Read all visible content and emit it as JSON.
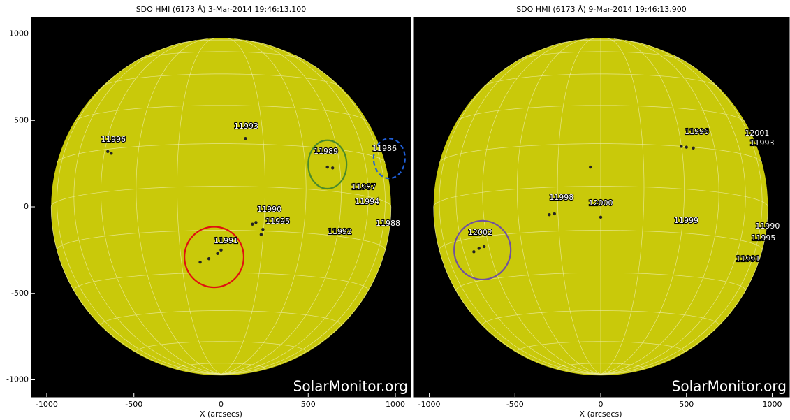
{
  "chart_data": [
    {
      "type": "solar-image",
      "title": "SDO HMI (6173 Å)  3-Mar-2014 19:46:13.100",
      "xlabel": "X (arcsecs)",
      "watermark": "SolarMonitor.org",
      "xlim": [
        -1088,
        1088
      ],
      "ylim": [
        -1099,
        1095
      ],
      "xticks": [
        -1000,
        -500,
        0,
        500,
        1000
      ],
      "yticks": [
        -1000,
        -500,
        0,
        500,
        1000
      ],
      "annotations": [
        {
          "label": "11996",
          "x": -617,
          "y": 388
        },
        {
          "label": "11993",
          "x": 144,
          "y": 465
        },
        {
          "label": "11989",
          "x": 601,
          "y": 319
        },
        {
          "label": "11986",
          "x": 938,
          "y": 335
        },
        {
          "label": "11987",
          "x": 818,
          "y": 113
        },
        {
          "label": "11994",
          "x": 838,
          "y": 28
        },
        {
          "label": "11990",
          "x": 277,
          "y": -16
        },
        {
          "label": "11995",
          "x": 325,
          "y": -85
        },
        {
          "label": "11992",
          "x": 681,
          "y": -145
        },
        {
          "label": "11988",
          "x": 958,
          "y": -97
        },
        {
          "label": "11991",
          "x": 28,
          "y": -198
        }
      ]
    },
    {
      "type": "solar-image",
      "title": "SDO HMI (6173 Å)  9-Mar-2014 19:46:13.900",
      "xlabel": "X (arcsecs)",
      "watermark": "SolarMonitor.org",
      "xlim": [
        -1092,
        1100
      ],
      "ylim": [
        -1099,
        1095
      ],
      "xticks": [
        -1000,
        -500,
        0,
        500,
        1000
      ],
      "annotations": [
        {
          "label": "11996",
          "x": 560,
          "y": 432
        },
        {
          "label": "12001",
          "x": 912,
          "y": 424
        },
        {
          "label": "11993",
          "x": 941,
          "y": 368
        },
        {
          "label": "11998",
          "x": -229,
          "y": 53
        },
        {
          "label": "12000",
          "x": 0,
          "y": 20
        },
        {
          "label": "11999",
          "x": 499,
          "y": -81
        },
        {
          "label": "11990",
          "x": 973,
          "y": -113
        },
        {
          "label": "11995",
          "x": 949,
          "y": -182
        },
        {
          "label": "11991",
          "x": 859,
          "y": -303
        },
        {
          "label": "12002",
          "x": -703,
          "y": -149
        }
      ]
    }
  ]
}
